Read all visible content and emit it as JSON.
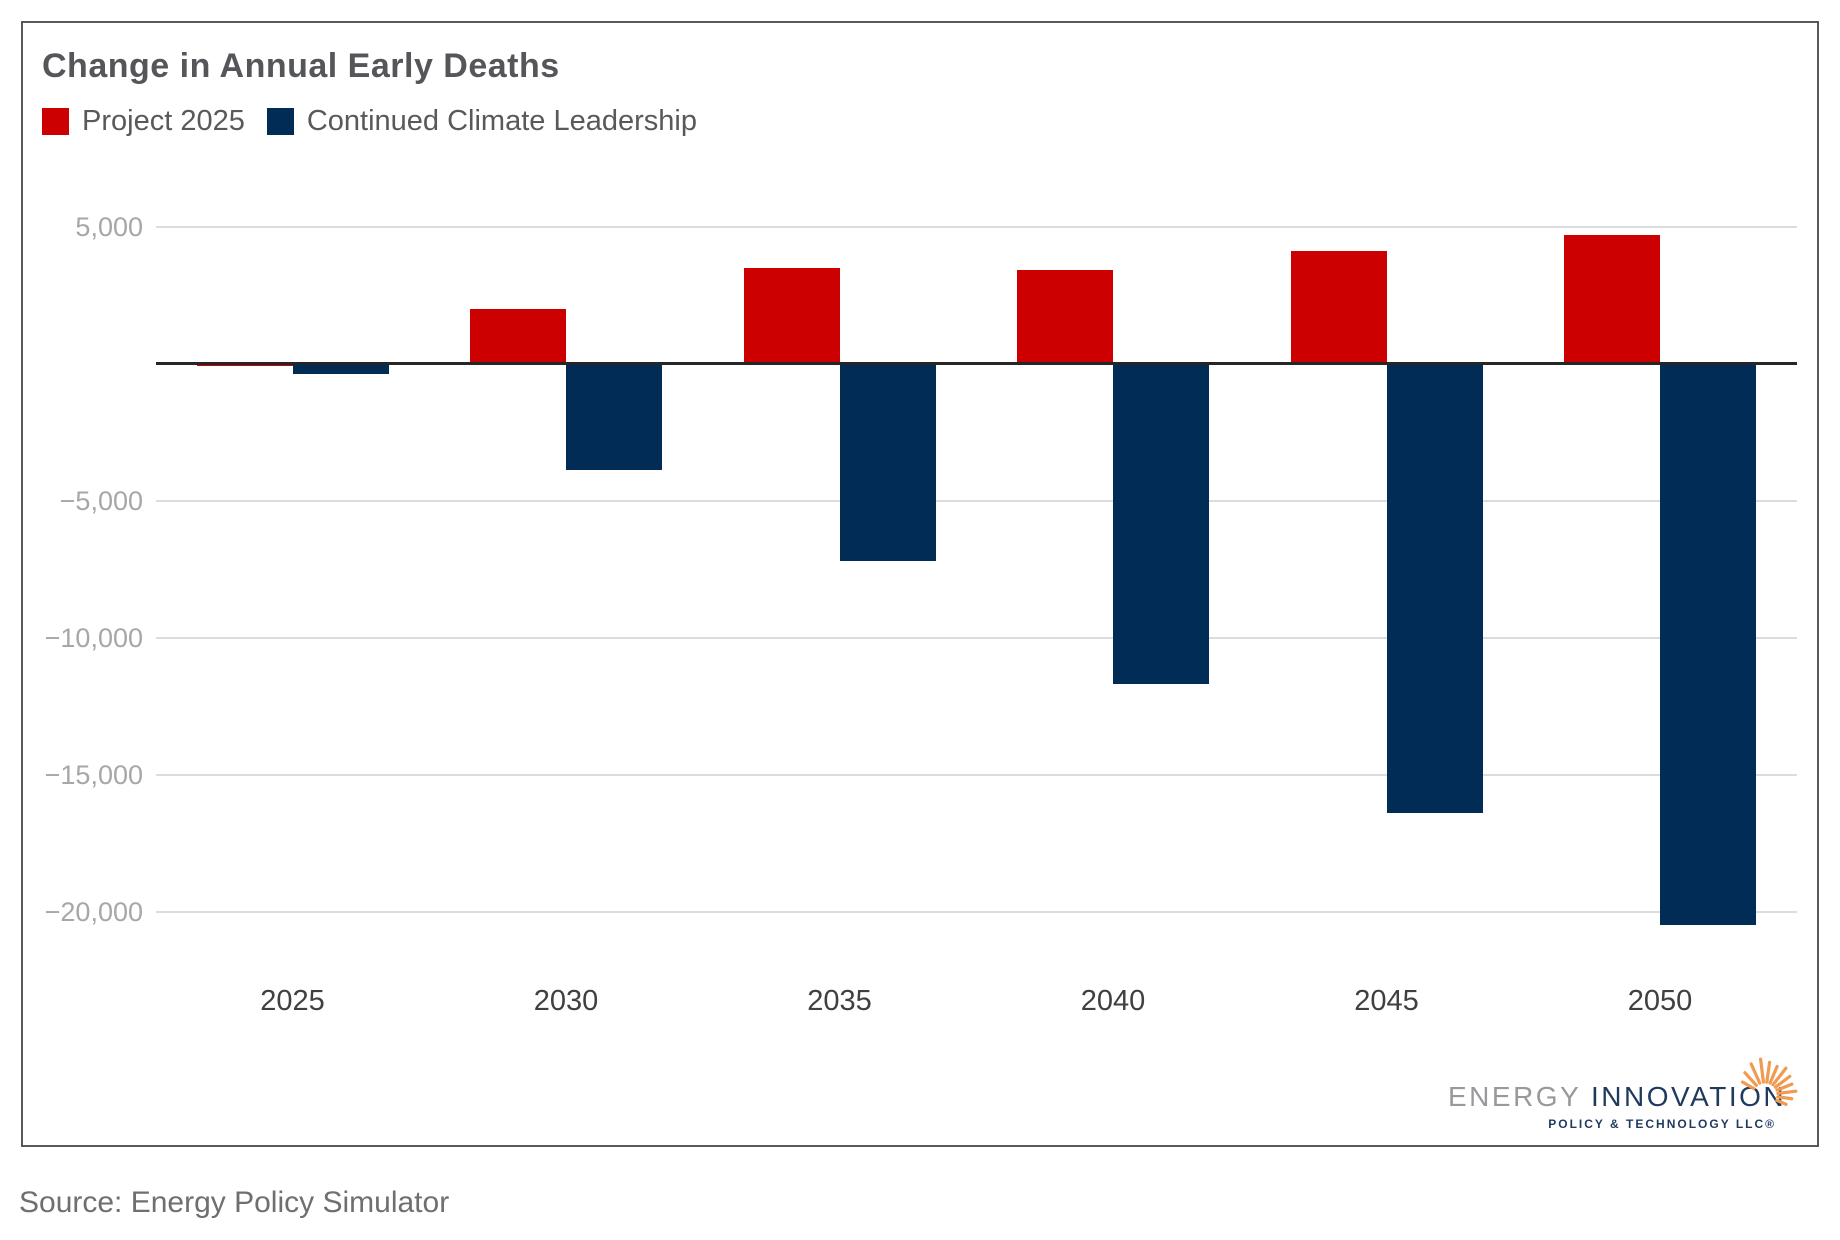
{
  "title": "Change in Annual Early Deaths",
  "legend": [
    {
      "label": "Project 2025",
      "color": "#CC0000"
    },
    {
      "label": "Continued Climate Leadership",
      "color": "#002C55"
    }
  ],
  "source": "Source: Energy Policy Simulator",
  "logo": {
    "word1": "ENERGY ",
    "word2": "INNOVATION",
    "subtitle": "POLICY & TECHNOLOGY LLC®",
    "sunburst_color": "#F09B52"
  },
  "colors": {
    "project_2025": "#CC0000",
    "continued_climate_leadership": "#002C55",
    "gridline": "#DCDCDC",
    "zero_axis": "#262626",
    "frame_border": "#58595B"
  },
  "chart_data": {
    "type": "bar",
    "title": "Change in Annual Early Deaths",
    "categories": [
      "2025",
      "2030",
      "2035",
      "2040",
      "2045",
      "2050"
    ],
    "series": [
      {
        "name": "Project 2025",
        "color": "#CC0000",
        "values": [
          -100,
          2000,
          3500,
          3400,
          4100,
          4700
        ]
      },
      {
        "name": "Continued Climate Leadership",
        "color": "#002C55",
        "values": [
          -400,
          -3900,
          -7200,
          -11700,
          -16400,
          -20500
        ]
      }
    ],
    "xlabel": "",
    "ylabel": "",
    "ylim": [
      -21500,
      5000
    ],
    "yticks": [
      5000,
      -5000,
      -10000,
      -15000,
      -20000
    ],
    "ytick_labels": [
      "5,000",
      "−5,000",
      "−10,000",
      "−15,000",
      "−20,000"
    ],
    "zero_axis_drawn": true,
    "grid": true,
    "legend_position": "top-left"
  }
}
